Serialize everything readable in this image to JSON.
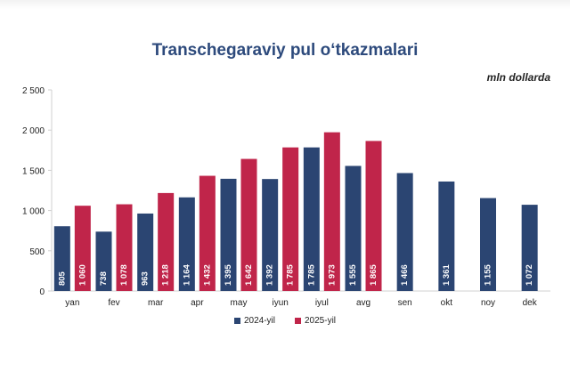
{
  "chart_data": {
    "type": "bar",
    "title": "Transchegaraviy pul o‘tkazmalari",
    "unit_label": "mln dollarda",
    "categories": [
      "yan",
      "fev",
      "mar",
      "apr",
      "may",
      "iyun",
      "iyul",
      "avg",
      "sen",
      "okt",
      "noy",
      "dek"
    ],
    "series": [
      {
        "name": "2024-yil",
        "color": "#2b4572",
        "values": [
          805,
          738,
          963,
          1164,
          1395,
          1392,
          1785,
          1555,
          1466,
          1361,
          1155,
          1072
        ],
        "labels": [
          "805",
          "738",
          "963",
          "1 164",
          "1 395",
          "1 392",
          "1 785",
          "1 555",
          "1 466",
          "1 361",
          "1 155",
          "1 072"
        ]
      },
      {
        "name": "2025-yil",
        "color": "#c0254a",
        "values": [
          1060,
          1078,
          1218,
          1432,
          1642,
          1785,
          1973,
          1865,
          null,
          null,
          null,
          null
        ],
        "labels": [
          "1 060",
          "1 078",
          "1 218",
          "1 432",
          "1 642",
          "1 785",
          "1 973",
          "1 865",
          "",
          "",
          "",
          ""
        ]
      }
    ],
    "ylim": [
      0,
      2500
    ],
    "yticks": [
      0,
      500,
      1000,
      1500,
      2000,
      2500
    ],
    "ytick_labels": [
      "0",
      "500",
      "1 000",
      "1 500",
      "2 000",
      "2 500"
    ],
    "xlabel": "",
    "ylabel": "",
    "grid": false,
    "legend_position": "bottom"
  }
}
